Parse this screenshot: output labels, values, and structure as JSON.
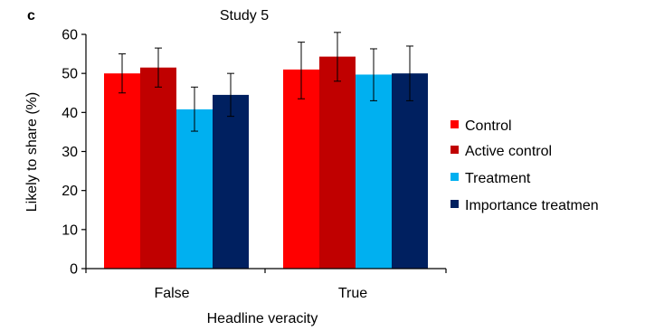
{
  "chart_data": {
    "type": "bar",
    "panel_label": "c",
    "title": "Study 5",
    "xlabel": "Headline veracity",
    "ylabel": "Likely to share (%)",
    "ylim": [
      0,
      60
    ],
    "yticks": [
      "0",
      "10",
      "20",
      "30",
      "40",
      "50",
      "60"
    ],
    "categories": [
      "False",
      "True"
    ],
    "legend_position": "right",
    "error_bars": true,
    "series": [
      {
        "name": "Control",
        "color": "#ff0000",
        "values": [
          50,
          51
        ],
        "err_low": [
          45,
          43.5
        ],
        "err_high": [
          55,
          58
        ]
      },
      {
        "name": "Active control",
        "color": "#c00000",
        "values": [
          51.5,
          54.3
        ],
        "err_low": [
          46.5,
          48
        ],
        "err_high": [
          56.5,
          60.5
        ]
      },
      {
        "name": "Treatment",
        "color": "#00b0f0",
        "values": [
          40.8,
          49.7
        ],
        "err_low": [
          35.2,
          43
        ],
        "err_high": [
          46.5,
          56.3
        ]
      },
      {
        "name": "Importance treatmen",
        "color": "#002060",
        "values": [
          44.5,
          50
        ],
        "err_low": [
          39,
          43
        ],
        "err_high": [
          50,
          57
        ]
      }
    ]
  }
}
